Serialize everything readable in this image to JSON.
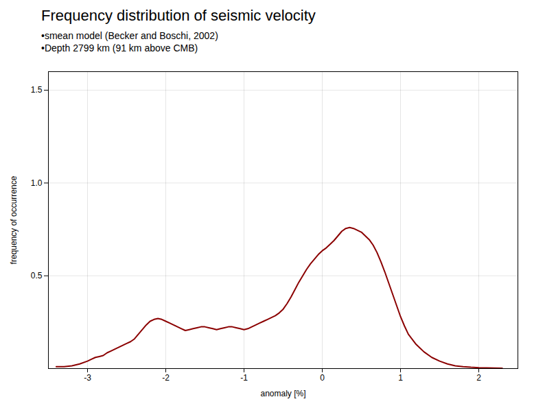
{
  "chart_data": {
    "type": "line",
    "title": "Frequency distribution of seismic velocity",
    "subtitle": [
      "•smean model (Becker and Boschi, 2002)",
      "•Depth 2799 km (91 km above CMB)"
    ],
    "xlabel": "anomaly [%]",
    "ylabel": "frequency of occurrence",
    "xlim": [
      -3.5,
      2.5
    ],
    "ylim": [
      0,
      1.6
    ],
    "xticks": [
      -3,
      -2,
      -1,
      0,
      1,
      2
    ],
    "yticks": [
      0.5,
      {
        "value": 1.0,
        "label": "1.0"
      },
      1.5
    ],
    "grid": true,
    "color": "#8B0000",
    "x": [
      -3.4,
      -3.3,
      -3.2,
      -3.1,
      -3.0,
      -2.95,
      -2.9,
      -2.85,
      -2.8,
      -2.75,
      -2.7,
      -2.65,
      -2.6,
      -2.55,
      -2.5,
      -2.45,
      -2.4,
      -2.35,
      -2.3,
      -2.25,
      -2.2,
      -2.15,
      -2.1,
      -2.05,
      -2.0,
      -1.95,
      -1.9,
      -1.85,
      -1.8,
      -1.75,
      -1.7,
      -1.65,
      -1.6,
      -1.55,
      -1.5,
      -1.45,
      -1.4,
      -1.35,
      -1.3,
      -1.25,
      -1.2,
      -1.15,
      -1.1,
      -1.05,
      -1.0,
      -0.95,
      -0.9,
      -0.85,
      -0.8,
      -0.75,
      -0.7,
      -0.65,
      -0.6,
      -0.55,
      -0.5,
      -0.45,
      -0.4,
      -0.35,
      -0.3,
      -0.25,
      -0.2,
      -0.15,
      -0.1,
      -0.05,
      0.0,
      0.05,
      0.1,
      0.15,
      0.2,
      0.25,
      0.3,
      0.35,
      0.4,
      0.45,
      0.5,
      0.55,
      0.6,
      0.65,
      0.7,
      0.75,
      0.8,
      0.85,
      0.9,
      0.95,
      1.0,
      1.05,
      1.1,
      1.2,
      1.3,
      1.4,
      1.5,
      1.6,
      1.7,
      1.8,
      1.9,
      2.0,
      2.1,
      2.2,
      2.3
    ],
    "values": [
      0.01,
      0.01,
      0.015,
      0.025,
      0.04,
      0.05,
      0.06,
      0.065,
      0.07,
      0.085,
      0.095,
      0.105,
      0.115,
      0.125,
      0.135,
      0.145,
      0.16,
      0.185,
      0.21,
      0.235,
      0.255,
      0.265,
      0.27,
      0.265,
      0.255,
      0.245,
      0.235,
      0.225,
      0.215,
      0.205,
      0.21,
      0.215,
      0.22,
      0.225,
      0.225,
      0.22,
      0.215,
      0.21,
      0.215,
      0.22,
      0.225,
      0.225,
      0.22,
      0.215,
      0.21,
      0.215,
      0.225,
      0.235,
      0.245,
      0.255,
      0.265,
      0.275,
      0.285,
      0.3,
      0.32,
      0.35,
      0.385,
      0.425,
      0.465,
      0.5,
      0.535,
      0.565,
      0.59,
      0.615,
      0.635,
      0.65,
      0.67,
      0.69,
      0.715,
      0.74,
      0.755,
      0.76,
      0.755,
      0.745,
      0.735,
      0.715,
      0.695,
      0.665,
      0.625,
      0.575,
      0.52,
      0.46,
      0.4,
      0.34,
      0.28,
      0.23,
      0.185,
      0.13,
      0.09,
      0.06,
      0.04,
      0.025,
      0.015,
      0.01,
      0.007,
      0.005,
      0.004,
      0.003,
      0.002
    ]
  }
}
